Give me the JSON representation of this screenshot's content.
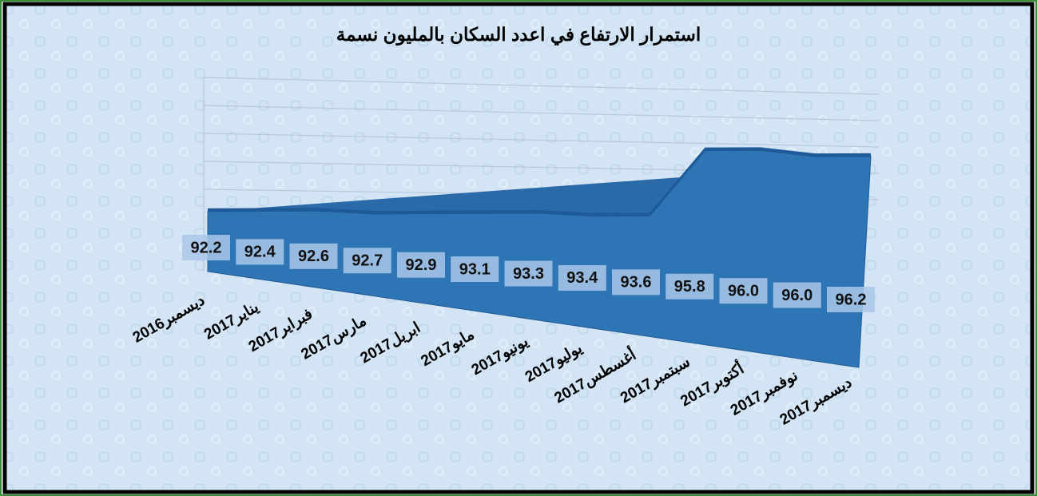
{
  "chart_data": {
    "type": "area",
    "title": "استمرار الارتفاع في اعدد السكان بالمليون نسمة",
    "categories": [
      "ديسمبر2016",
      "يناير2017",
      "فبراير2017",
      "مارس2017",
      "ابريل2017",
      "مايو2017",
      "يونيو2017",
      "يوليو2017",
      "أغسطس2017",
      "سبتمبر2017",
      "أكتوبر2017",
      "نوفمبر2017",
      "ديسمبر2017"
    ],
    "values": [
      92.2,
      92.4,
      92.6,
      92.7,
      92.9,
      93.1,
      93.3,
      93.4,
      93.6,
      95.8,
      96.0,
      96.0,
      96.2
    ],
    "value_labels": [
      "92.2",
      "92.4",
      "92.6",
      "92.7",
      "92.9",
      "93.1",
      "93.3",
      "93.4",
      "93.6",
      "95.8",
      "96.0",
      "96.0",
      "96.2"
    ],
    "color": "#2e75b6",
    "ylim": [
      90,
      98
    ]
  }
}
